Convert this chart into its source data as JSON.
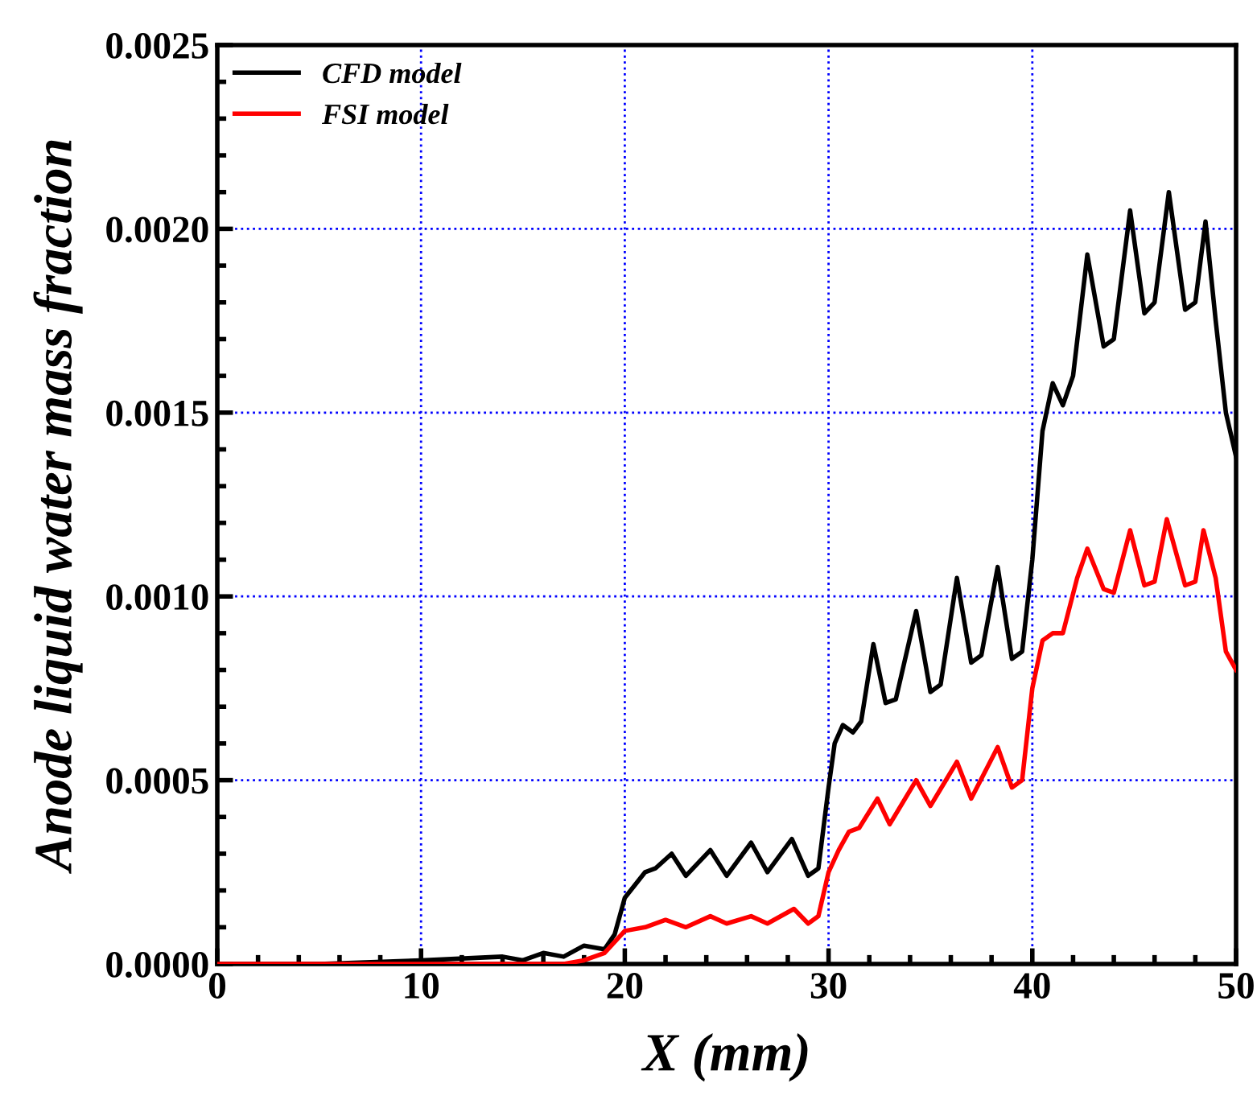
{
  "chart_data": {
    "type": "line",
    "xlabel": "X (mm)",
    "ylabel": "Anode liquid water mass fraction",
    "xlim": [
      0,
      50
    ],
    "ylim": [
      0,
      0.0025
    ],
    "xticks": [
      0,
      10,
      20,
      30,
      40,
      50
    ],
    "yticks": [
      {
        "value": 0,
        "label": "0.0000"
      },
      {
        "value": 0.0005,
        "label": "0.0005"
      },
      {
        "value": 0.001,
        "label": "0.0010"
      },
      {
        "value": 0.0015,
        "label": "0.0015"
      },
      {
        "value": 0.002,
        "label": "0.0020"
      },
      {
        "value": 0.0025,
        "label": "0.0025"
      }
    ],
    "grid": true,
    "legend": "top left",
    "line_style": "solid",
    "marker": "none",
    "series": [
      {
        "name": "CFD model",
        "color": "#000000",
        "x": [
          0,
          5,
          10,
          14,
          15,
          16,
          17,
          18,
          19,
          19.5,
          20,
          21,
          21.5,
          22.3,
          23,
          24.2,
          25,
          26.2,
          27,
          28.2,
          29,
          29.5,
          30,
          30.3,
          30.7,
          31.2,
          31.6,
          32.2,
          32.8,
          33.3,
          34.3,
          35,
          35.5,
          36.3,
          37,
          37.5,
          38.3,
          39,
          39.5,
          40,
          40.5,
          41,
          41.5,
          42,
          42.7,
          43.5,
          44,
          44.8,
          45.5,
          46,
          46.7,
          47.5,
          48,
          48.5,
          49,
          49.5,
          50
        ],
        "values": [
          0,
          0,
          1e-05,
          2e-05,
          1e-05,
          3e-05,
          2e-05,
          5e-05,
          4e-05,
          8e-05,
          0.00018,
          0.00025,
          0.00026,
          0.0003,
          0.00024,
          0.00031,
          0.00024,
          0.00033,
          0.00025,
          0.00034,
          0.00024,
          0.00026,
          0.00048,
          0.0006,
          0.00065,
          0.00063,
          0.00066,
          0.00087,
          0.00071,
          0.00072,
          0.00096,
          0.00074,
          0.00076,
          0.00105,
          0.00082,
          0.00084,
          0.00108,
          0.00083,
          0.00085,
          0.0011,
          0.00145,
          0.00158,
          0.00152,
          0.0016,
          0.00193,
          0.00168,
          0.0017,
          0.00205,
          0.00177,
          0.0018,
          0.0021,
          0.00178,
          0.0018,
          0.00202,
          0.00175,
          0.0015,
          0.00138
        ]
      },
      {
        "name": "FSI model",
        "color": "#ff0000",
        "x": [
          0,
          5,
          10,
          17,
          18,
          19,
          19.5,
          20,
          21,
          22,
          23,
          24.2,
          25,
          26.2,
          27,
          28.3,
          29,
          29.5,
          30,
          30.5,
          31,
          31.5,
          32.4,
          33,
          34.3,
          35,
          36.3,
          37,
          38.3,
          39,
          39.5,
          40,
          40.5,
          41,
          41.5,
          42.2,
          42.7,
          43.5,
          44,
          44.8,
          45.5,
          46,
          46.6,
          47.5,
          48,
          48.4,
          49,
          49.5,
          50
        ],
        "values": [
          0,
          0,
          0,
          0,
          1e-05,
          3e-05,
          6e-05,
          9e-05,
          0.0001,
          0.00012,
          0.0001,
          0.00013,
          0.00011,
          0.00013,
          0.00011,
          0.00015,
          0.00011,
          0.00013,
          0.00025,
          0.00031,
          0.00036,
          0.00037,
          0.00045,
          0.00038,
          0.0005,
          0.00043,
          0.00055,
          0.00045,
          0.00059,
          0.00048,
          0.0005,
          0.00075,
          0.00088,
          0.0009,
          0.0009,
          0.00105,
          0.00113,
          0.00102,
          0.00101,
          0.00118,
          0.00103,
          0.00104,
          0.00121,
          0.00103,
          0.00104,
          0.00118,
          0.00105,
          0.00085,
          0.0008
        ]
      }
    ]
  }
}
